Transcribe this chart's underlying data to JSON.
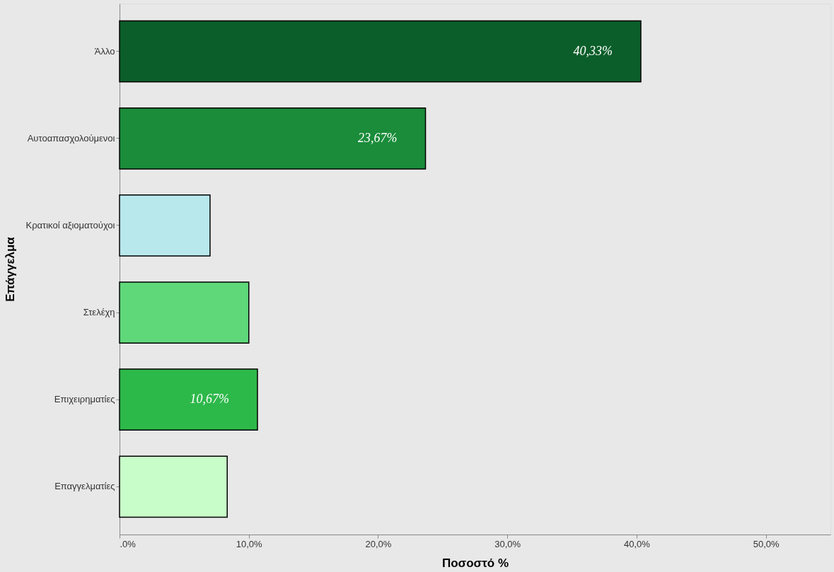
{
  "chart_data": {
    "type": "bar",
    "orientation": "horizontal",
    "xlabel": "Ποσοστό %",
    "ylabel": "Επάγγελμα",
    "categories": [
      "Άλλο",
      "Αυτοαπασχολούμενοι",
      "Κρατικοί αξιοματούχοι",
      "Στελέχη",
      "Επιχειρηματίες",
      "Επαγγελματίες"
    ],
    "values": [
      40.33,
      23.67,
      7.0,
      10.0,
      10.67,
      8.33
    ],
    "colors": [
      "#0b5e2a",
      "#1a8c3a",
      "#b8e8ec",
      "#5fd87a",
      "#2db84a",
      "#c8fcc8"
    ],
    "value_labels": [
      "40,33%",
      "23,67%",
      null,
      null,
      "10,67%",
      null
    ],
    "xlim": [
      0,
      55
    ],
    "xticks": [
      {
        "value": 0,
        "label": ".0%"
      },
      {
        "value": 10,
        "label": "10,0%"
      },
      {
        "value": 20,
        "label": "20,0%"
      },
      {
        "value": 30,
        "label": "30,0%"
      },
      {
        "value": 40,
        "label": "40,0%"
      },
      {
        "value": 50,
        "label": "50,0%"
      }
    ]
  }
}
